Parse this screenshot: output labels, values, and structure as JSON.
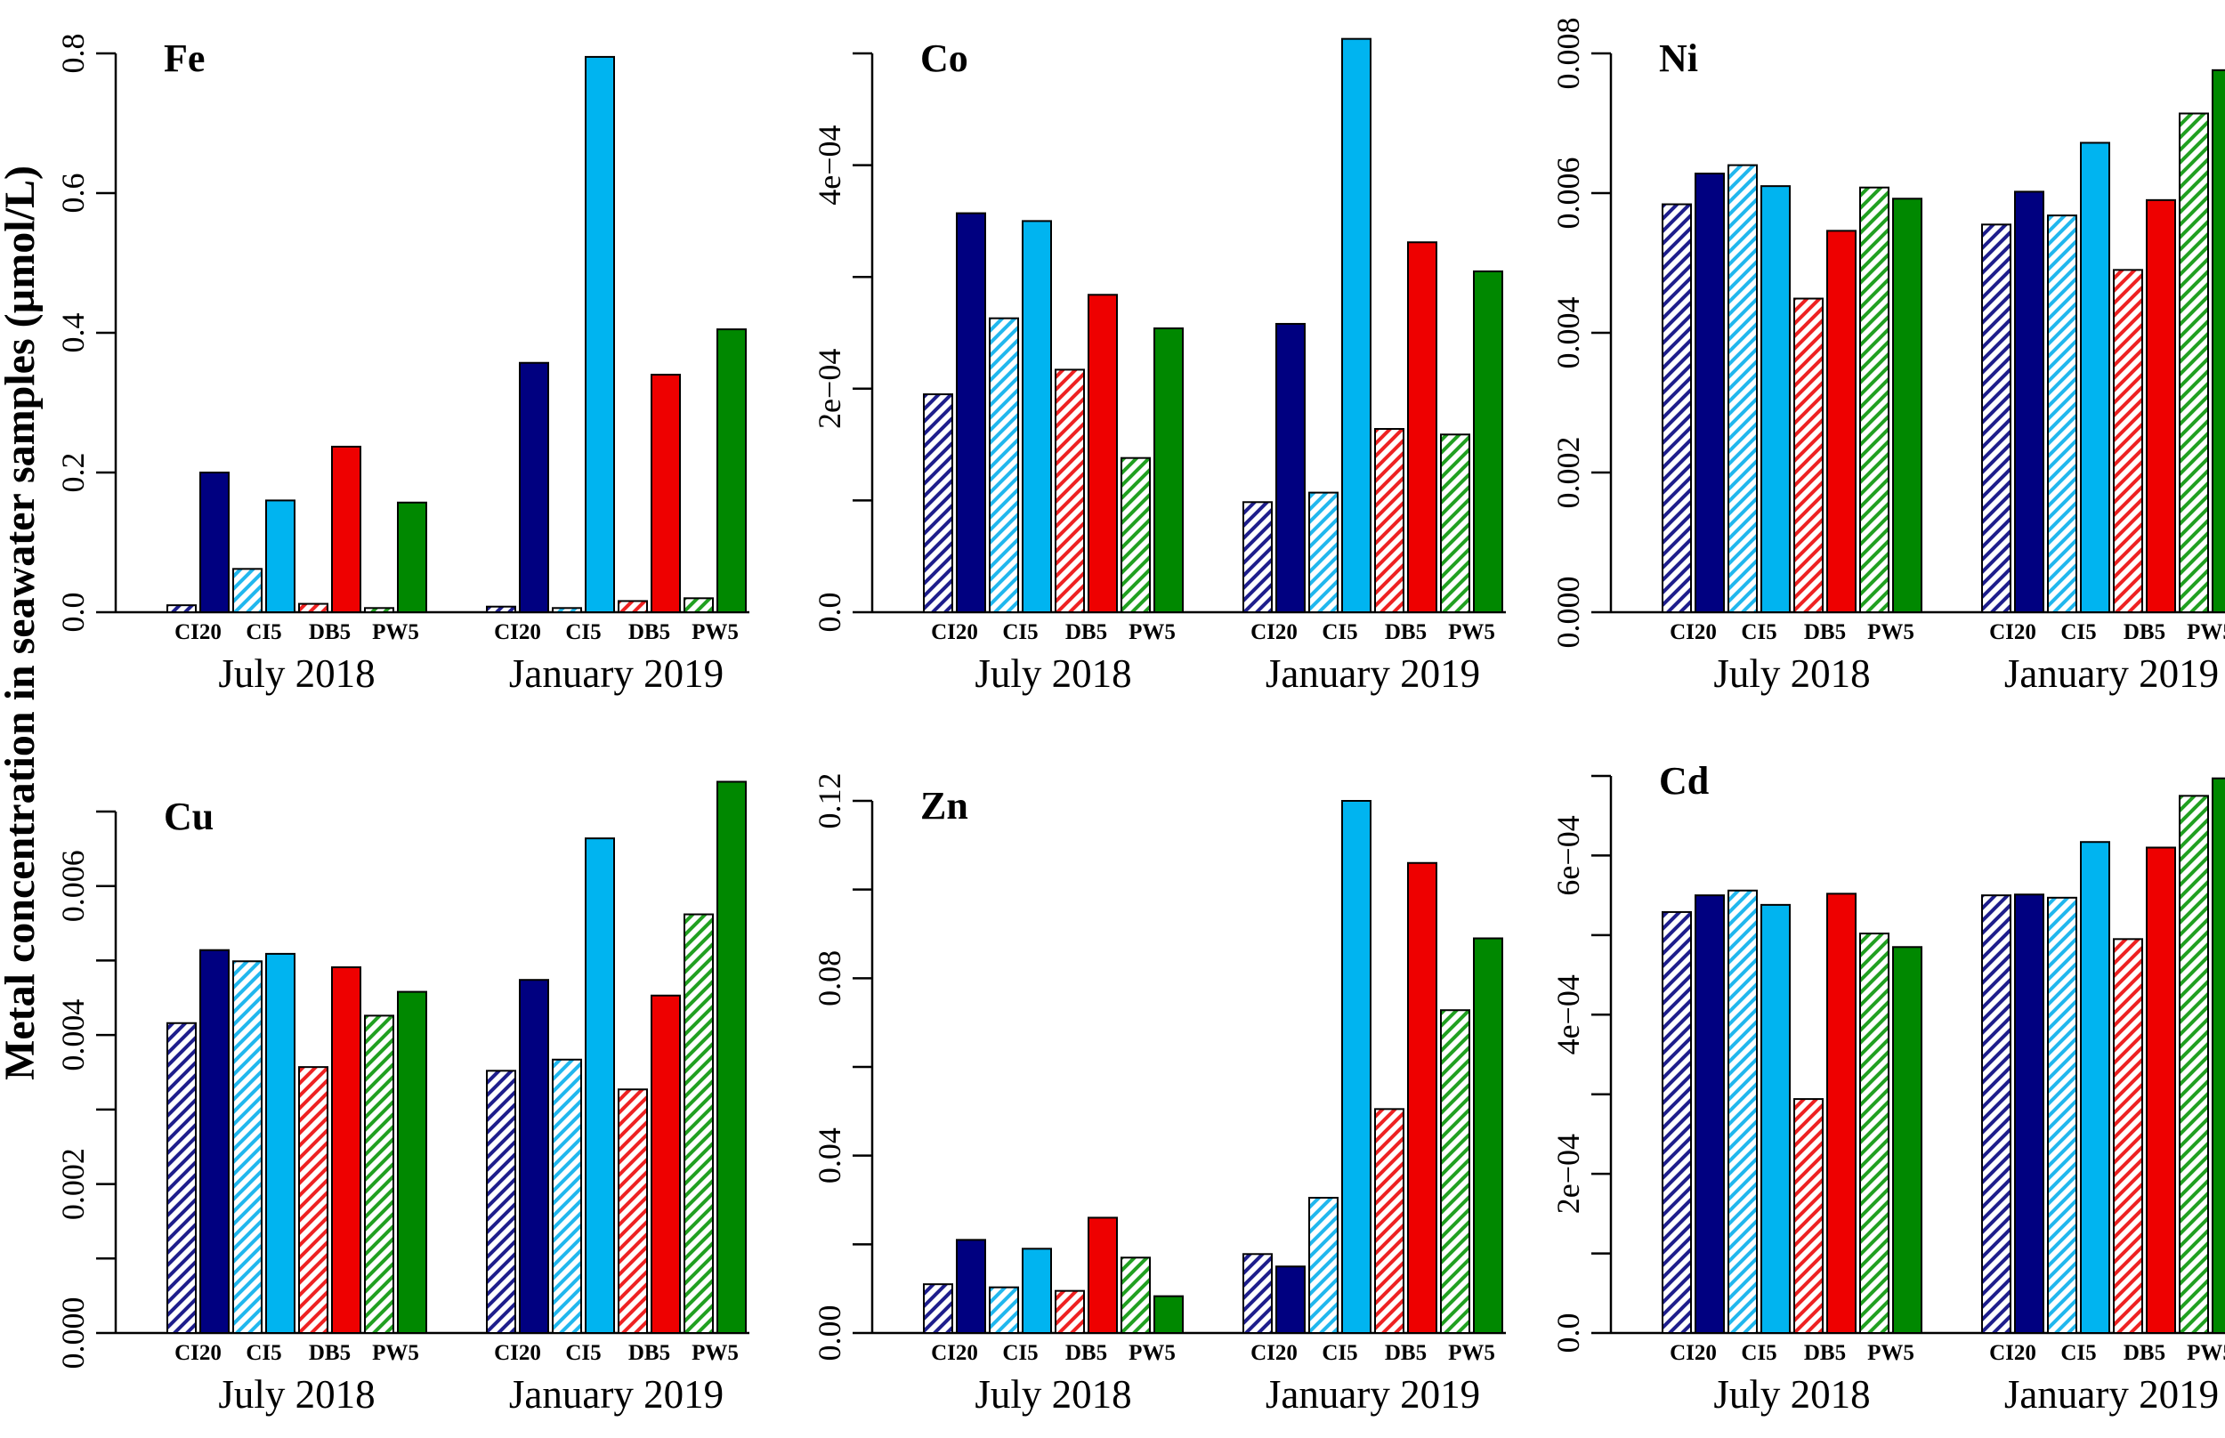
{
  "chart_data": {
    "type": "bar",
    "ylabel": "Metal concentration in seawater samples (µmol/L)",
    "sites": [
      "CI20",
      "CI20",
      "CI5",
      "CI5",
      "DB5",
      "DB5",
      "PW5",
      "PW5"
    ],
    "site_labels": [
      "CI20",
      "CI5",
      "DB5",
      "PW5"
    ],
    "groups": [
      "July 2018",
      "January 2019"
    ],
    "bar_styles": [
      {
        "color": "#1e1e8c",
        "hatched": true
      },
      {
        "color": "#000080",
        "hatched": false
      },
      {
        "color": "#21b7ee",
        "hatched": true
      },
      {
        "color": "#00b4f0",
        "hatched": false
      },
      {
        "color": "#ee2222",
        "hatched": true
      },
      {
        "color": "#ee0000",
        "hatched": false
      },
      {
        "color": "#21a021",
        "hatched": true
      },
      {
        "color": "#008800",
        "hatched": false
      }
    ],
    "panels": [
      {
        "title": "Fe",
        "ylim": [
          0,
          0.8
        ],
        "yticks": [
          0,
          0.2,
          0.4,
          0.6,
          0.8
        ],
        "ytick_labels": [
          "0.0",
          "0.2",
          "0.4",
          "0.6",
          "0.8"
        ],
        "values": [
          [
            0.01,
            0.2,
            0.062,
            0.16,
            0.012,
            0.237,
            0.006,
            0.157
          ],
          [
            0.008,
            0.357,
            0.006,
            0.795,
            0.016,
            0.34,
            0.02,
            0.405
          ]
        ]
      },
      {
        "title": "Co",
        "ylim": [
          0,
          0.0005
        ],
        "yticks": [
          0,
          0.0001,
          0.0002,
          0.0003,
          0.0004,
          0.0005
        ],
        "ytick_labels": [
          "0.0",
          "",
          "2e−04",
          "",
          "4e−04",
          ""
        ],
        "values": [
          [
            0.000195,
            0.000357,
            0.000263,
            0.00035,
            0.000217,
            0.000284,
            0.000138,
            0.000254
          ],
          [
            9.85e-05,
            0.000258,
            0.000107,
            0.000513,
            0.000164,
            0.000331,
            0.000159,
            0.000305
          ]
        ]
      },
      {
        "title": "Ni",
        "ylim": [
          0,
          0.008
        ],
        "yticks": [
          0,
          0.002,
          0.004,
          0.006,
          0.008
        ],
        "ytick_labels": [
          "0.000",
          "0.002",
          "0.004",
          "0.006",
          "0.008"
        ],
        "values": [
          [
            0.00584,
            0.00628,
            0.0064,
            0.0061,
            0.00449,
            0.00546,
            0.00608,
            0.00592
          ],
          [
            0.00555,
            0.00602,
            0.00568,
            0.00672,
            0.0049,
            0.0059,
            0.00714,
            0.00776
          ]
        ]
      },
      {
        "title": "Cu",
        "ylim": [
          0,
          0.007
        ],
        "yticks": [
          0,
          0.001,
          0.002,
          0.003,
          0.004,
          0.005,
          0.006,
          0.007
        ],
        "ytick_labels": [
          "0.000",
          "",
          "0.002",
          "",
          "0.004",
          "",
          "0.006",
          ""
        ],
        "values": [
          [
            0.00416,
            0.00514,
            0.00499,
            0.00509,
            0.00357,
            0.00491,
            0.00426,
            0.00458
          ],
          [
            0.00352,
            0.00474,
            0.00367,
            0.00664,
            0.00327,
            0.00453,
            0.00562,
            0.0074
          ]
        ]
      },
      {
        "title": "Zn",
        "ylim": [
          0,
          0.12
        ],
        "yticks": [
          0,
          0.02,
          0.04,
          0.06,
          0.08,
          0.1,
          0.12
        ],
        "ytick_labels": [
          "0.00",
          "",
          "0.04",
          "",
          "0.08",
          "",
          "0.12"
        ],
        "values": [
          [
            0.011,
            0.021,
            0.0103,
            0.019,
            0.0095,
            0.026,
            0.017,
            0.0083
          ],
          [
            0.0178,
            0.015,
            0.0305,
            0.12,
            0.0505,
            0.106,
            0.0728,
            0.089
          ]
        ]
      },
      {
        "title": "Cd",
        "ylim": [
          0,
          0.0007
        ],
        "yticks": [
          0,
          0.0001,
          0.0002,
          0.0003,
          0.0004,
          0.0005,
          0.0006,
          0.0007
        ],
        "ytick_labels": [
          "0.0",
          "",
          "2e−04",
          "",
          "4e−04",
          "",
          "6e−04",
          ""
        ],
        "values": [
          [
            0.000529,
            0.00055,
            0.000556,
            0.000538,
            0.000294,
            0.000552,
            0.000502,
            0.000485
          ],
          [
            0.00055,
            0.000551,
            0.000547,
            0.000617,
            0.000495,
            0.00061,
            0.000675,
            0.000697
          ]
        ]
      }
    ]
  }
}
